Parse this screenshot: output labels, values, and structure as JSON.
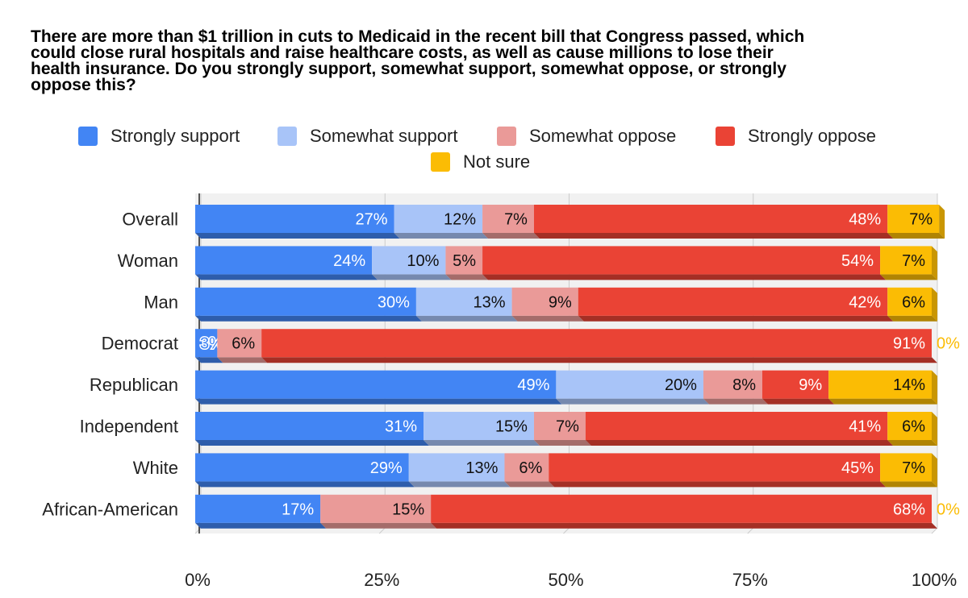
{
  "chart_data": {
    "type": "bar",
    "orientation": "horizontal",
    "stacked": true,
    "title": "There are more than $1 trillion in cuts to Medicaid in the recent bill that Congress passed, which could close rural hospitals and raise healthcare costs, as well as cause millions to lose their health insurance. Do you strongly support, somewhat support, somewhat oppose, or strongly oppose this?",
    "title_lines": [
      "There are more than $1 trillion in cuts to Medicaid in the recent bill that Congress passed, which",
      "could close rural hospitals and raise healthcare costs, as well as cause millions to lose their",
      "health insurance. Do you strongly support, somewhat support, somewhat oppose, or strongly",
      "oppose this?"
    ],
    "categories": [
      "Overall",
      "Woman",
      "Man",
      "Democrat",
      "Republican",
      "Independent",
      "White",
      "African-American"
    ],
    "series": [
      {
        "name": "Strongly support",
        "color": "#4285F4",
        "label_color": "#ffffff",
        "values": [
          27,
          24,
          30,
          3,
          49,
          31,
          29,
          17
        ]
      },
      {
        "name": "Somewhat support",
        "color": "#A8C4F8",
        "label_color": "#111111",
        "values": [
          12,
          10,
          13,
          0,
          20,
          15,
          13,
          0
        ]
      },
      {
        "name": "Somewhat oppose",
        "color": "#EA9A98",
        "label_color": "#111111",
        "values": [
          7,
          5,
          9,
          6,
          8,
          7,
          6,
          15
        ]
      },
      {
        "name": "Strongly oppose",
        "color": "#EA4335",
        "label_color": "#ffffff",
        "values": [
          48,
          54,
          42,
          91,
          9,
          41,
          45,
          68
        ]
      },
      {
        "name": "Not sure",
        "color": "#FBBC04",
        "label_color": "#111111",
        "values": [
          7,
          7,
          6,
          0,
          14,
          6,
          7,
          0
        ]
      }
    ],
    "value_suffix": "%",
    "xlim": [
      0,
      100
    ],
    "xticks": [
      "0%",
      "25%",
      "50%",
      "75%",
      "100%"
    ],
    "xlabel": "",
    "ylabel": "",
    "grid": true,
    "legend_position": "top",
    "colors": {
      "grid": "#cccccc",
      "plot_background": "#f1f1f1",
      "text": "#222222"
    }
  }
}
